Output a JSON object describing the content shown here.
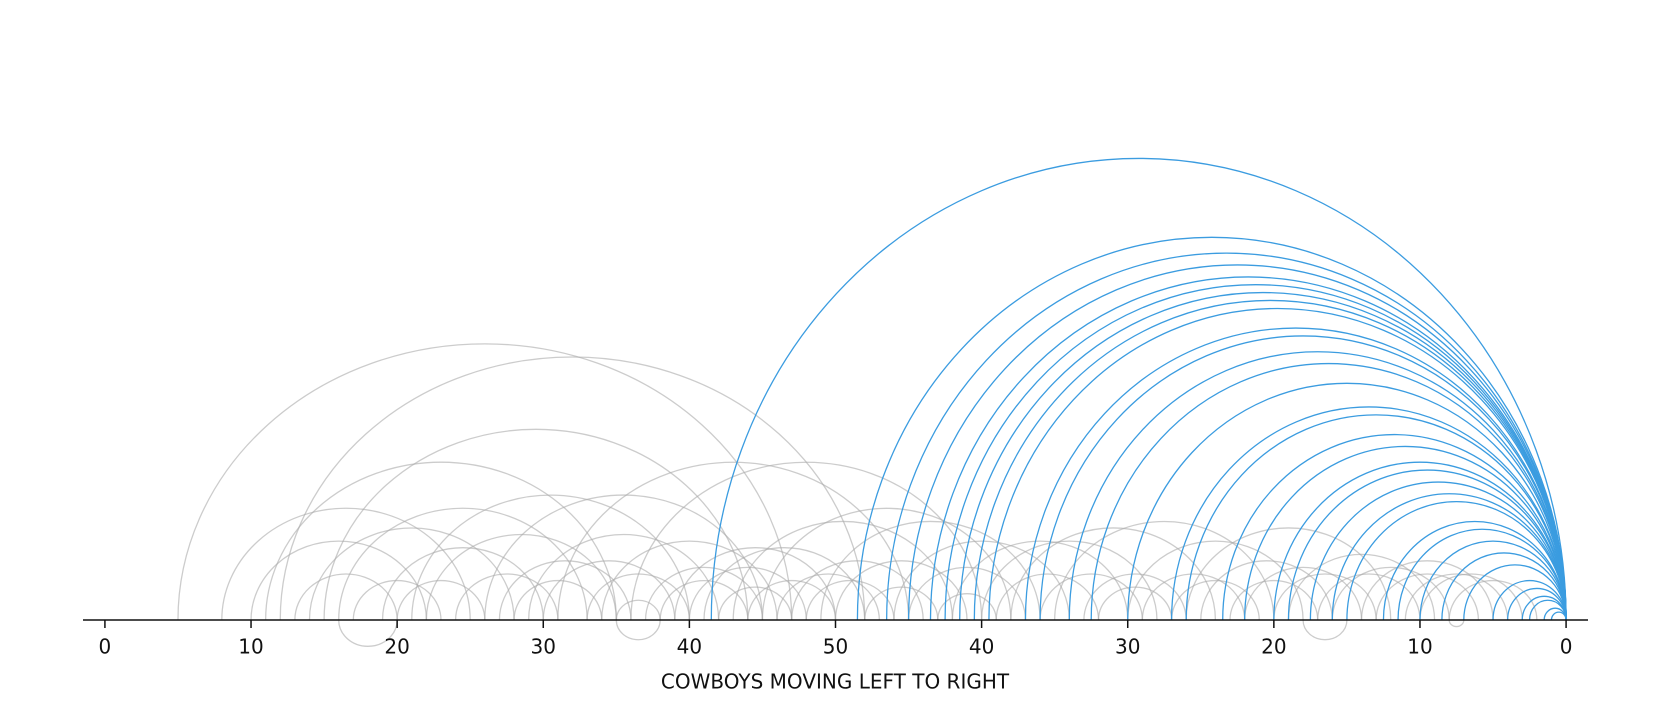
{
  "chart_data": {
    "type": "arc",
    "x_label": "COWBOYS MOVING LEFT TO RIGHT",
    "xlim": [
      -1.5,
      101.5
    ],
    "xticks": [
      0,
      10,
      20,
      30,
      40,
      50,
      {
        "value": 60,
        "label": "40"
      },
      {
        "value": 70,
        "label": "30"
      },
      {
        "value": 80,
        "label": "20"
      },
      {
        "value": 90,
        "label": "10"
      },
      {
        "value": 100,
        "label": "0"
      }
    ],
    "series": [
      {
        "color": "#aaaaaa",
        "start": [
          5,
          8,
          11,
          12,
          15,
          10,
          13,
          14,
          16,
          17,
          19,
          20,
          21,
          22,
          24,
          26,
          27,
          28,
          29,
          30,
          31,
          33,
          34,
          35,
          36,
          37,
          38,
          39,
          40,
          41,
          42,
          43,
          44,
          45,
          46,
          47,
          48,
          49,
          50,
          52,
          54,
          55,
          57,
          58,
          60,
          61,
          62,
          64,
          65,
          67,
          68,
          70,
          71,
          73,
          74,
          75,
          77,
          78,
          80,
          81,
          83,
          84,
          86,
          87,
          89,
          90,
          92,
          20,
          38,
          85,
          93
        ],
        "end": [
          47,
          25,
          35,
          52,
          44,
          22,
          20,
          28,
          33,
          23,
          30,
          26,
          40,
          35,
          31,
          45,
          36,
          34,
          42,
          39,
          55,
          40,
          46,
          38,
          60,
          45,
          44,
          50,
          48,
          52,
          47,
          58,
          50,
          62,
          53,
          56,
          54,
          64,
          59,
          57,
          66,
          63,
          61,
          70,
          72,
          68,
          76,
          71,
          80,
          74,
          73,
          82,
          78,
          79,
          88,
          84,
          83,
          86,
          87,
          91,
          90,
          92,
          95,
          94,
          96,
          97,
          98,
          16,
          35,
          82,
          92
        ]
      },
      {
        "color": "#3b9ce0",
        "start": [
          41.5,
          51.5,
          53.5,
          55,
          56.5,
          57.5,
          58.5,
          59.5,
          60.5,
          63,
          64,
          66,
          67.5,
          70,
          73,
          74,
          76.5,
          78,
          80,
          81,
          82.5,
          84,
          85,
          87.5,
          88.5,
          90,
          91.5,
          93,
          95,
          96,
          97,
          97.5,
          98.5,
          99
        ],
        "end": [
          100,
          100,
          100,
          100,
          100,
          100,
          100,
          100,
          100,
          100,
          100,
          100,
          100,
          100,
          100,
          100,
          100,
          100,
          100,
          100,
          100,
          100,
          100,
          100,
          100,
          100,
          100,
          100,
          100,
          100,
          100,
          100,
          100,
          100
        ]
      }
    ]
  }
}
